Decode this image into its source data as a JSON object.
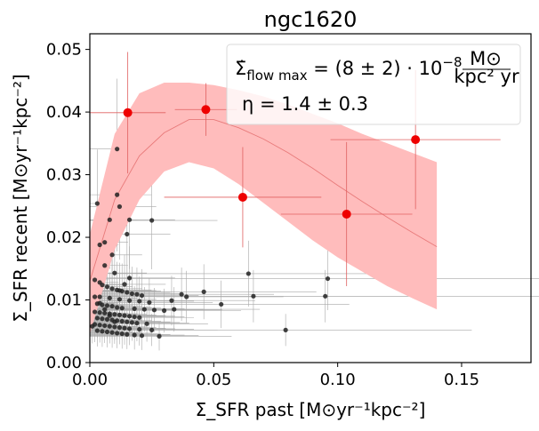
{
  "chart_data": {
    "type": "scatter",
    "title": "ngc1620",
    "xlabel": "Σ_SFR past  [M⊙yr⁻¹kpc⁻²]",
    "ylabel": "Σ_SFR recent  [M⊙yr⁻¹kpc⁻²]",
    "xlim": [
      0.0,
      0.178
    ],
    "ylim": [
      0.0,
      0.0525
    ],
    "xticks": [
      0.0,
      0.05,
      0.1,
      0.15
    ],
    "xtick_labels": [
      "0.00",
      "0.05",
      "0.10",
      "0.15"
    ],
    "yticks": [
      0.0,
      0.01,
      0.02,
      0.03,
      0.04,
      0.05
    ],
    "ytick_labels": [
      "0.00",
      "0.01",
      "0.02",
      "0.03",
      "0.04",
      "0.05"
    ],
    "grid": false,
    "annotations": {
      "flow": {
        "lhs": "Σ̇",
        "lhs_sub": "flow max",
        "mid": " = (8 ± 2) · 10",
        "exp": "−8",
        "unit_num": "M⊙",
        "unit_den": "kpc² yr"
      },
      "eta": "η = 1.4 ± 0.3"
    },
    "colors": {
      "model_band": "#ffbcbc",
      "model_line": "#e87a7a",
      "binned": "#ee0000",
      "binned_err": "#e06060",
      "points": "#222222",
      "point_err": "#a8a8a8"
    },
    "model": {
      "x": [
        0.0,
        0.01,
        0.02,
        0.03,
        0.04,
        0.05,
        0.06,
        0.07,
        0.08,
        0.09,
        0.1,
        0.11,
        0.12,
        0.13,
        0.14
      ],
      "center": [
        0.013,
        0.026,
        0.033,
        0.0367,
        0.0388,
        0.0388,
        0.0375,
        0.0357,
        0.0335,
        0.031,
        0.0283,
        0.0257,
        0.0232,
        0.0208,
        0.0185
      ],
      "lower": [
        0.0045,
        0.018,
        0.026,
        0.0305,
        0.032,
        0.031,
        0.0285,
        0.0255,
        0.0225,
        0.0195,
        0.0168,
        0.0145,
        0.0122,
        0.0103,
        0.0085
      ],
      "upper": [
        0.0205,
        0.0365,
        0.043,
        0.0447,
        0.0447,
        0.0443,
        0.0435,
        0.0425,
        0.0412,
        0.0397,
        0.0382,
        0.0365,
        0.035,
        0.0335,
        0.032
      ]
    },
    "binned_series": {
      "name": "binned",
      "x": [
        0.0153,
        0.0468,
        0.0617,
        0.1036,
        0.1314
      ],
      "y": [
        0.0399,
        0.0404,
        0.0264,
        0.0237,
        0.0356
      ],
      "xerr": [
        0.0153,
        0.0125,
        0.0317,
        0.0265,
        0.0343
      ],
      "yerr": [
        0.0097,
        0.0042,
        0.008,
        0.0115,
        0.0111
      ]
    },
    "points_series": {
      "name": "regions",
      "x": [
        0.011,
        0.011,
        0.015,
        0.012,
        0.003,
        0.008,
        0.006,
        0.004,
        0.009,
        0.016,
        0.025,
        0.006,
        0.01,
        0.002,
        0.004,
        0.005,
        0.007,
        0.009,
        0.011,
        0.013,
        0.015,
        0.017,
        0.019,
        0.021,
        0.004,
        0.008,
        0.012,
        0.016,
        0.02,
        0.024,
        0.003,
        0.005,
        0.007,
        0.009,
        0.011,
        0.013,
        0.018,
        0.022,
        0.026,
        0.03,
        0.002,
        0.004,
        0.006,
        0.008,
        0.01,
        0.012,
        0.014,
        0.016,
        0.018,
        0.02,
        0.003,
        0.005,
        0.007,
        0.009,
        0.011,
        0.013,
        0.015,
        0.017,
        0.019,
        0.023,
        0.002,
        0.004,
        0.006,
        0.008,
        0.01,
        0.012,
        0.014,
        0.016,
        0.02,
        0.025,
        0.003,
        0.005,
        0.007,
        0.009,
        0.011,
        0.013,
        0.015,
        0.018,
        0.021,
        0.028,
        0.002,
        0.004,
        0.006,
        0.008,
        0.01,
        0.012,
        0.014,
        0.016,
        0.034,
        0.039,
        0.046,
        0.033,
        0.037,
        0.053,
        0.064,
        0.066,
        0.079,
        0.096,
        0.095,
        0.001
      ],
      "y": [
        0.0341,
        0.0268,
        0.0205,
        0.0249,
        0.0254,
        0.0228,
        0.0192,
        0.0188,
        0.0172,
        0.0228,
        0.0227,
        0.0155,
        0.0143,
        0.0132,
        0.0128,
        0.0124,
        0.0121,
        0.0118,
        0.0116,
        0.0114,
        0.0112,
        0.011,
        0.0109,
        0.0107,
        0.0105,
        0.0103,
        0.0101,
        0.0099,
        0.0098,
        0.0096,
        0.0094,
        0.0092,
        0.0091,
        0.009,
        0.0088,
        0.0087,
        0.0086,
        0.0085,
        0.0084,
        0.0083,
        0.0081,
        0.008,
        0.0079,
        0.0078,
        0.0077,
        0.0076,
        0.0075,
        0.0074,
        0.0073,
        0.0072,
        0.0071,
        0.007,
        0.0069,
        0.0068,
        0.0067,
        0.0066,
        0.0065,
        0.0064,
        0.0063,
        0.0062,
        0.0061,
        0.006,
        0.0059,
        0.0058,
        0.0057,
        0.0056,
        0.0055,
        0.0054,
        0.0053,
        0.0052,
        0.0051,
        0.005,
        0.0049,
        0.0048,
        0.0047,
        0.0046,
        0.0045,
        0.0044,
        0.0043,
        0.0042,
        0.0105,
        0.0095,
        0.0085,
        0.0075,
        0.0065,
        0.0115,
        0.0125,
        0.0135,
        0.0085,
        0.0105,
        0.0113,
        0.0099,
        0.0109,
        0.0093,
        0.0142,
        0.0106,
        0.0052,
        0.0134,
        0.0106,
        0.0058
      ],
      "xerr_relative": 0.9,
      "yerr_relative": 0.6
    }
  }
}
